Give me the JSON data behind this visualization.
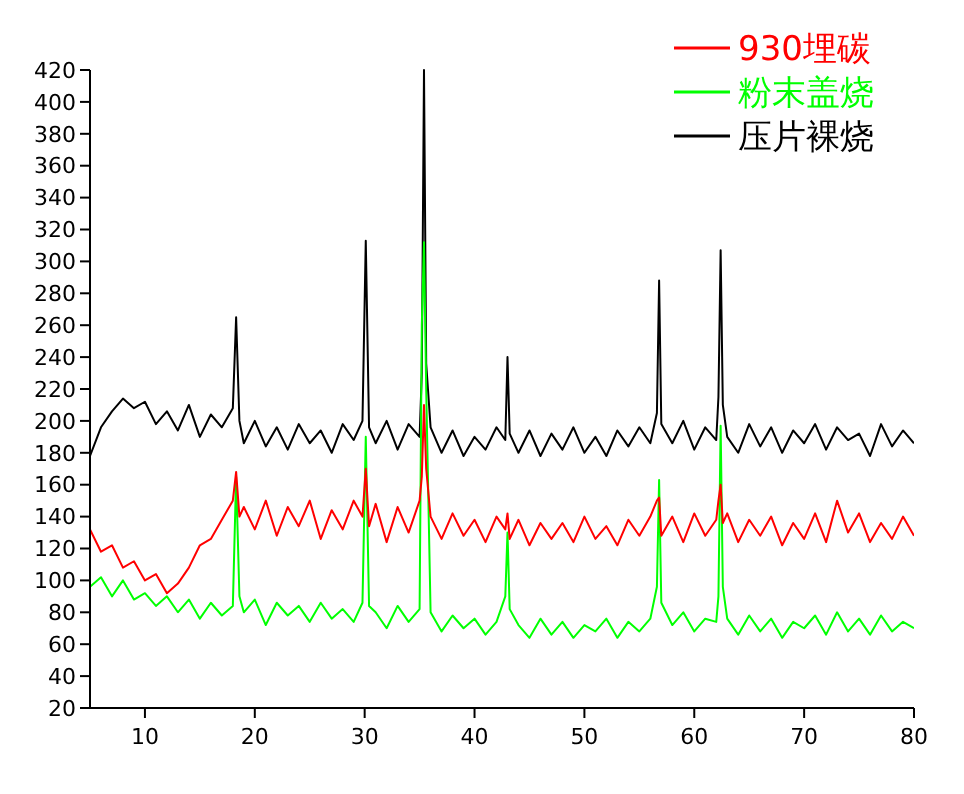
{
  "chart_data": {
    "type": "line",
    "xlim": [
      5,
      80
    ],
    "ylim": [
      20,
      420
    ],
    "xticks": [
      10,
      20,
      30,
      40,
      50,
      60,
      70,
      80
    ],
    "yticks": [
      20,
      40,
      60,
      80,
      100,
      120,
      140,
      160,
      180,
      200,
      220,
      240,
      260,
      280,
      300,
      320,
      340,
      360,
      380,
      400,
      420
    ],
    "x": [
      5,
      6,
      7,
      8,
      9,
      10,
      11,
      12,
      13,
      14,
      15,
      16,
      17,
      18,
      18.3,
      18.6,
      19,
      20,
      21,
      22,
      23,
      24,
      25,
      26,
      27,
      28,
      29,
      29.8,
      30.1,
      30.4,
      31,
      32,
      33,
      34,
      35,
      35.2,
      35.4,
      35.6,
      36,
      37,
      38,
      39,
      40,
      41,
      42,
      42.8,
      43,
      43.2,
      44,
      45,
      46,
      47,
      48,
      49,
      50,
      51,
      52,
      53,
      54,
      55,
      56,
      56.6,
      56.8,
      57,
      58,
      59,
      60,
      61,
      62,
      62.2,
      62.4,
      62.6,
      63,
      64,
      65,
      66,
      67,
      68,
      69,
      70,
      71,
      72,
      73,
      74,
      75,
      76,
      77,
      78,
      79,
      80
    ],
    "grid": false,
    "legend": "top right",
    "series": [
      {
        "name": "930埋碳",
        "color": "#ff0000",
        "values": [
          132,
          118,
          122,
          108,
          112,
          100,
          104,
          92,
          98,
          108,
          122,
          126,
          138,
          150,
          168,
          140,
          146,
          132,
          150,
          128,
          146,
          134,
          150,
          126,
          144,
          132,
          150,
          140,
          170,
          134,
          148,
          124,
          146,
          130,
          150,
          165,
          210,
          170,
          140,
          126,
          142,
          128,
          138,
          124,
          140,
          132,
          142,
          126,
          138,
          122,
          136,
          126,
          136,
          124,
          140,
          126,
          134,
          122,
          138,
          128,
          140,
          150,
          152,
          128,
          140,
          124,
          142,
          128,
          138,
          150,
          160,
          136,
          142,
          124,
          138,
          128,
          140,
          122,
          136,
          126,
          142,
          124,
          150,
          130,
          142,
          124,
          136,
          126,
          140,
          128
        ]
      },
      {
        "name": "粉末盖烧",
        "color": "#00ff00",
        "values": [
          96,
          102,
          90,
          100,
          88,
          92,
          84,
          90,
          80,
          88,
          76,
          86,
          78,
          84,
          165,
          90,
          80,
          88,
          72,
          86,
          78,
          84,
          74,
          86,
          76,
          82,
          74,
          86,
          190,
          84,
          80,
          70,
          84,
          74,
          82,
          260,
          312,
          220,
          80,
          68,
          78,
          70,
          76,
          66,
          74,
          90,
          130,
          82,
          72,
          64,
          76,
          66,
          74,
          64,
          72,
          68,
          76,
          64,
          74,
          68,
          76,
          96,
          163,
          86,
          72,
          80,
          68,
          76,
          74,
          90,
          197,
          96,
          76,
          66,
          78,
          68,
          76,
          64,
          74,
          70,
          78,
          66,
          80,
          68,
          76,
          66,
          78,
          68,
          74,
          70
        ]
      },
      {
        "name": "压片裸烧",
        "color": "#000000",
        "values": [
          178,
          196,
          206,
          214,
          208,
          212,
          198,
          206,
          194,
          210,
          190,
          204,
          196,
          208,
          265,
          200,
          186,
          200,
          184,
          196,
          182,
          198,
          186,
          194,
          180,
          198,
          188,
          200,
          313,
          196,
          186,
          200,
          182,
          198,
          190,
          230,
          420,
          236,
          196,
          180,
          194,
          178,
          190,
          182,
          196,
          188,
          240,
          192,
          180,
          194,
          178,
          192,
          182,
          196,
          180,
          190,
          178,
          194,
          184,
          196,
          186,
          205,
          288,
          198,
          186,
          200,
          182,
          196,
          188,
          215,
          307,
          210,
          190,
          180,
          198,
          184,
          196,
          180,
          194,
          186,
          198,
          182,
          196,
          188,
          192,
          178,
          198,
          184,
          194,
          186
        ]
      }
    ]
  }
}
